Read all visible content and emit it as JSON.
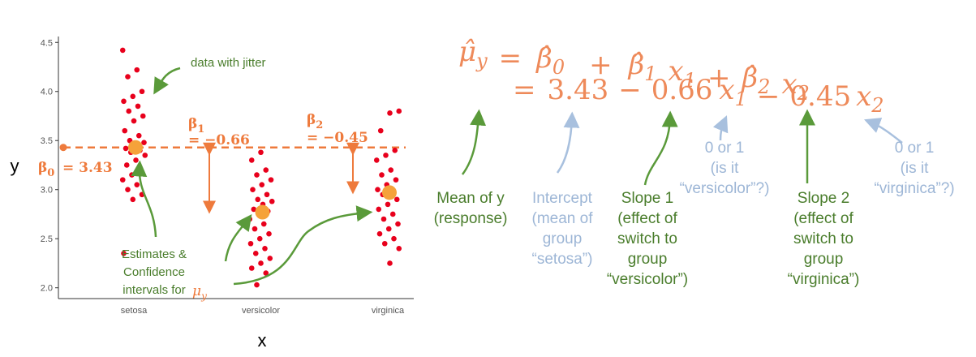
{
  "chart_data": {
    "type": "strip",
    "xlabel": "x",
    "ylabel": "y",
    "categories": [
      "setosa",
      "versicolor",
      "virginica"
    ],
    "ylim": [
      1.89,
      4.56
    ],
    "yticks": [
      {
        "value": 2,
        "label": "2.0"
      },
      {
        "value": 2.5,
        "label": "2.5"
      },
      {
        "value": 3,
        "label": "3.0"
      },
      {
        "value": 3.5,
        "label": "3.5"
      },
      {
        "value": 4,
        "label": "4.0"
      },
      {
        "value": 4.5,
        "label": "4.5"
      }
    ],
    "points": [
      [
        4.42,
        4.22,
        4.15,
        4.0,
        3.95,
        3.9,
        3.85,
        3.8,
        3.75,
        3.7,
        3.6,
        3.55,
        3.5,
        3.48,
        3.45,
        3.42,
        3.4,
        3.38,
        3.35,
        3.3,
        3.25,
        3.2,
        3.15,
        3.1,
        3.05,
        3.0,
        2.95,
        2.9,
        2.35
      ],
      [
        3.38,
        3.3,
        3.2,
        3.15,
        3.1,
        3.05,
        3.0,
        2.95,
        2.9,
        2.88,
        2.85,
        2.8,
        2.78,
        2.75,
        2.7,
        2.65,
        2.6,
        2.55,
        2.5,
        2.45,
        2.4,
        2.35,
        2.3,
        2.25,
        2.2,
        2.15,
        2.03
      ],
      [
        3.8,
        3.78,
        3.6,
        3.4,
        3.35,
        3.3,
        3.2,
        3.15,
        3.1,
        3.05,
        3.0,
        2.98,
        2.95,
        2.9,
        2.85,
        2.8,
        2.75,
        2.7,
        2.65,
        2.6,
        2.55,
        2.5,
        2.45,
        2.4,
        2.25
      ]
    ],
    "point_color": "#e8001c",
    "means": [
      3.43,
      2.77,
      2.97
    ],
    "mean_color": "#f5a23a",
    "reference_color": "#ee7a3c",
    "annotations": {
      "jitter": "data with jitter",
      "beta0": {
        "symbol": "β",
        "sub": "0",
        "text": "= 3.43"
      },
      "beta1": {
        "symbol": "β",
        "sub": "1",
        "text": "= −0.66"
      },
      "beta2": {
        "symbol": "β",
        "sub": "2",
        "text": "= −0.45"
      },
      "estimates": {
        "lines": [
          "Estimates &",
          "Confidence",
          "intervals for"
        ],
        "symbol": "μ",
        "sub": "y"
      }
    }
  },
  "equation": {
    "line1": [
      {
        "text": "μ̂",
        "sub": "y"
      },
      {
        "text": "="
      },
      {
        "text": "β̂",
        "sub": "0"
      },
      {
        "text": "+"
      },
      {
        "text": "β̂",
        "sub": "1"
      },
      {
        "text": "x",
        "sub": "1"
      },
      {
        "text": "+"
      },
      {
        "text": "β̂",
        "sub": "2"
      },
      {
        "text": "x",
        "sub": "2"
      }
    ],
    "line2": [
      {
        "text": "="
      },
      {
        "text": "3.43"
      },
      {
        "text": "−"
      },
      {
        "text": "0.66"
      },
      {
        "text": "x",
        "sub": "1"
      },
      {
        "text": "−"
      },
      {
        "text": "0.45"
      },
      {
        "text": "x",
        "sub": "2"
      }
    ]
  },
  "labels": [
    {
      "color": "#4a7d2c",
      "lines": [
        "Mean of y",
        "(response)"
      ]
    },
    {
      "color": "#9db6d6",
      "lines": [
        "Intercept",
        "(mean of",
        "group",
        "“setosa”)"
      ]
    },
    {
      "color": "#4a7d2c",
      "lines": [
        "Slope 1",
        "(effect of",
        "switch to",
        "group",
        "“versicolor”)"
      ]
    },
    {
      "color": "#9db6d6",
      "lines": [
        "0 or 1",
        "(is it",
        "“versicolor”?)"
      ]
    },
    {
      "color": "#4a7d2c",
      "lines": [
        "Slope 2",
        "(effect of",
        "switch to",
        "group",
        "“virginica”)"
      ]
    },
    {
      "color": "#9db6d6",
      "lines": [
        "0 or 1",
        "(is it",
        "“virginica”?)"
      ]
    }
  ]
}
